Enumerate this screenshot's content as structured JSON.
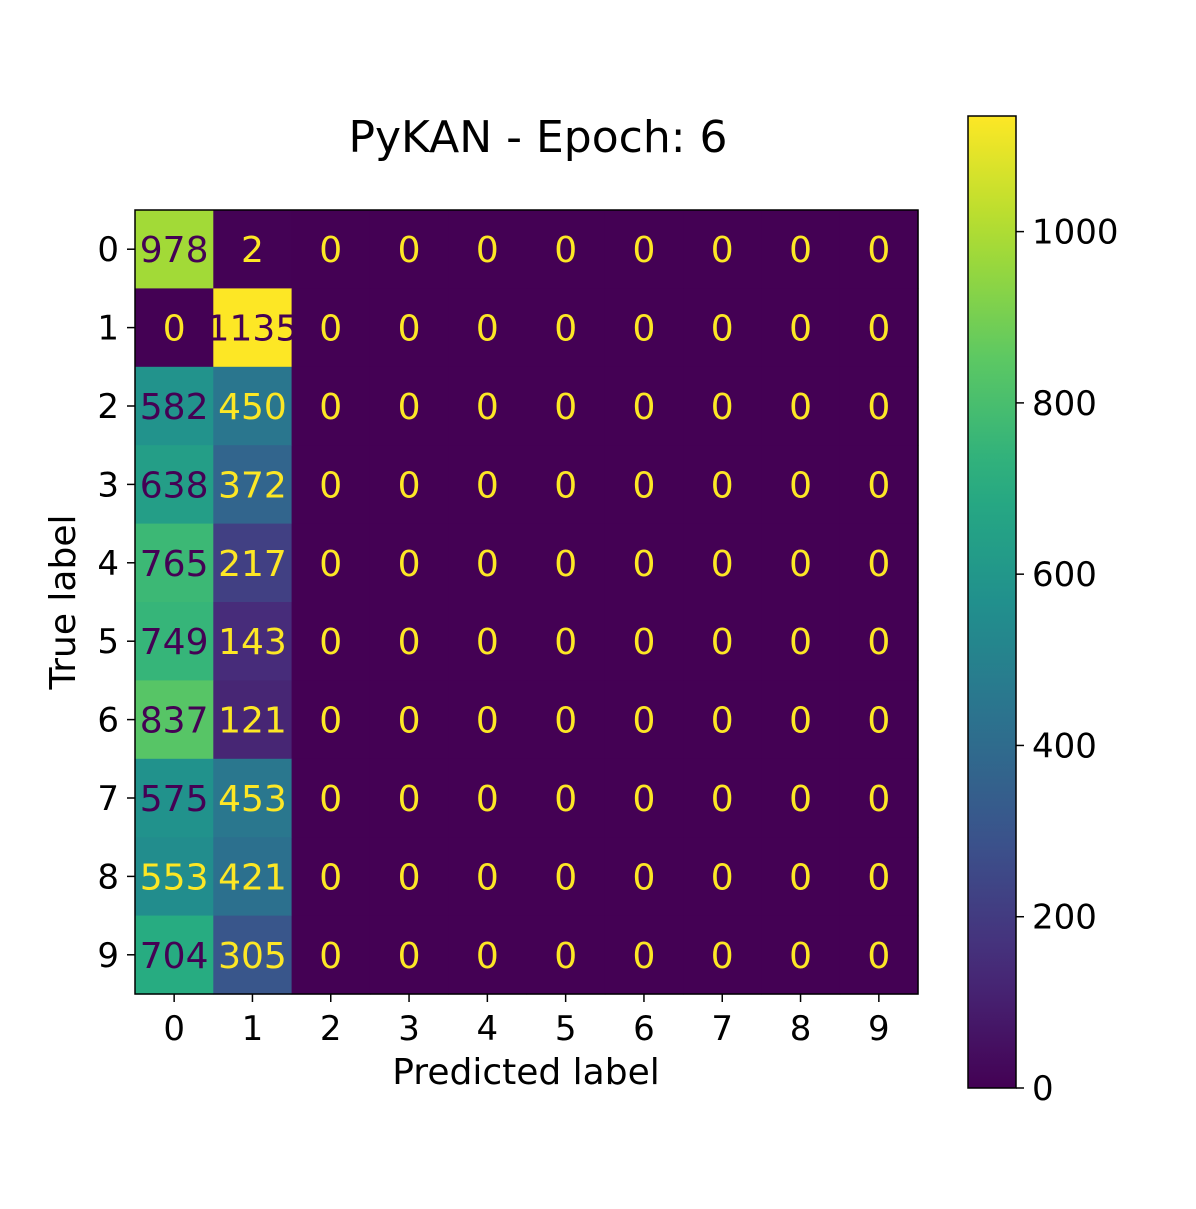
{
  "chart_data": {
    "type": "heatmap",
    "title": "PyKAN - Epoch: 6",
    "xlabel": "Predicted label",
    "ylabel": "True label",
    "x_categories": [
      "0",
      "1",
      "2",
      "3",
      "4",
      "5",
      "6",
      "7",
      "8",
      "9"
    ],
    "y_categories": [
      "0",
      "1",
      "2",
      "3",
      "4",
      "5",
      "6",
      "7",
      "8",
      "9"
    ],
    "values": [
      [
        978,
        2,
        0,
        0,
        0,
        0,
        0,
        0,
        0,
        0
      ],
      [
        0,
        1135,
        0,
        0,
        0,
        0,
        0,
        0,
        0,
        0
      ],
      [
        582,
        450,
        0,
        0,
        0,
        0,
        0,
        0,
        0,
        0
      ],
      [
        638,
        372,
        0,
        0,
        0,
        0,
        0,
        0,
        0,
        0
      ],
      [
        765,
        217,
        0,
        0,
        0,
        0,
        0,
        0,
        0,
        0
      ],
      [
        749,
        143,
        0,
        0,
        0,
        0,
        0,
        0,
        0,
        0
      ],
      [
        837,
        121,
        0,
        0,
        0,
        0,
        0,
        0,
        0,
        0
      ],
      [
        575,
        453,
        0,
        0,
        0,
        0,
        0,
        0,
        0,
        0
      ],
      [
        553,
        421,
        0,
        0,
        0,
        0,
        0,
        0,
        0,
        0
      ],
      [
        704,
        305,
        0,
        0,
        0,
        0,
        0,
        0,
        0,
        0
      ]
    ],
    "colormap": "viridis",
    "color_range": [
      0,
      1135
    ],
    "colorbar": {
      "ticks": [
        0,
        200,
        400,
        600,
        800,
        1000
      ],
      "tick_labels": [
        "0",
        "200",
        "400",
        "600",
        "800",
        "1000"
      ]
    },
    "text_colors": {
      "on_dark": "#fde725",
      "on_light": "#440154"
    },
    "grid": false
  }
}
